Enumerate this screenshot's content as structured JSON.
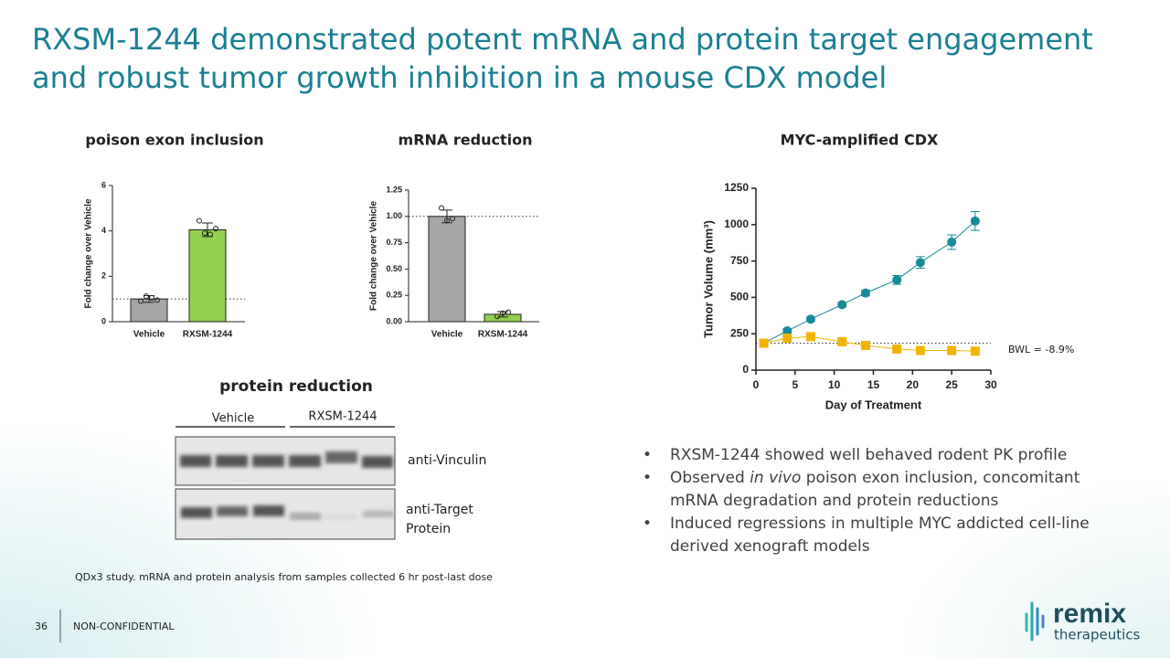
{
  "slide": {
    "title": "RXSM-1244 demonstrated potent mRNA and protein target engagement and robust tumor growth inhibition in a mouse CDX model",
    "blot": {
      "title": "protein reduction",
      "groups": [
        "Vehicle",
        "RXSM-1244"
      ],
      "rows": [
        "anti-Vinculin",
        "anti-Target Protein"
      ]
    },
    "bullets": [
      [
        "RXSM-1244 showed well behaved rodent PK profile"
      ],
      [
        "Observed ",
        "in vivo",
        " poison exon inclusion, concomitant mRNA degradation and protein reductions"
      ],
      [
        "Induced regressions in multiple MYC addicted cell-line derived xenograft models"
      ]
    ],
    "footnote": "QDx3 study. mRNA and protein analysis from samples collected 6 hr post-last dose",
    "page_number": "36",
    "confidentiality": "NON-CONFIDENTIAL",
    "logo": {
      "name": "remix",
      "tagline": "therapeutics"
    }
  },
  "chart_data": [
    {
      "type": "bar",
      "title": "poison exon inclusion",
      "y_label": "Fold change over Vehicle",
      "categories": [
        "Vehicle",
        "RXSM-1244"
      ],
      "values": [
        1.0,
        4.05
      ],
      "errors": [
        0.15,
        0.3
      ],
      "points": [
        [
          0.9,
          1.12,
          1.05,
          0.95
        ],
        [
          4.45,
          3.9,
          3.85,
          4.1
        ]
      ],
      "colors": [
        "#a6a6a6",
        "#92d050"
      ],
      "reference_line": 1,
      "ylim": [
        0,
        6
      ],
      "yticks": [
        0,
        2,
        4,
        6
      ]
    },
    {
      "type": "bar",
      "title": "mRNA reduction",
      "y_label": "Fold change over Vehicle",
      "categories": [
        "Vehicle",
        "RXSM-1244"
      ],
      "values": [
        1.0,
        0.07
      ],
      "errors": [
        0.06,
        0.025
      ],
      "points": [
        [
          1.08,
          0.96,
          0.98
        ],
        [
          0.05,
          0.08,
          0.09
        ]
      ],
      "colors": [
        "#a6a6a6",
        "#92d050"
      ],
      "reference_line": 1,
      "ylim": [
        0,
        1.25
      ],
      "yticks": [
        {
          "value": 0,
          "label": "0.00"
        },
        {
          "value": 0.25,
          "label": "0.25"
        },
        {
          "value": 0.5,
          "label": "0.50"
        },
        {
          "value": 0.75,
          "label": "0.75"
        },
        {
          "value": 1,
          "label": "1.00"
        },
        {
          "value": 1.25,
          "label": "1.25"
        }
      ]
    },
    {
      "type": "line",
      "title": "MYC-amplified CDX",
      "x_label": "Day of Treatment",
      "y_label": "Tumor Volume (mm³)",
      "x": [
        1,
        4,
        7,
        11,
        14,
        18,
        21,
        25,
        28
      ],
      "series": [
        {
          "color": "#178a98",
          "marker": "circle",
          "values": [
            185,
            270,
            350,
            450,
            530,
            620,
            740,
            880,
            1025
          ],
          "errors": [
            15,
            15,
            15,
            15,
            20,
            30,
            40,
            50,
            65
          ]
        },
        {
          "color": "#f0b400",
          "marker": "square",
          "values": [
            185,
            220,
            230,
            195,
            170,
            145,
            135,
            135,
            130
          ]
        }
      ],
      "reference_line": 185,
      "annotation": "BWL = -8.9%",
      "xlim": [
        0,
        30
      ],
      "xticks": [
        0,
        5,
        10,
        15,
        20,
        25,
        30
      ],
      "ylim": [
        0,
        1250
      ],
      "yticks": [
        0,
        250,
        500,
        750,
        1000,
        1250
      ]
    }
  ]
}
